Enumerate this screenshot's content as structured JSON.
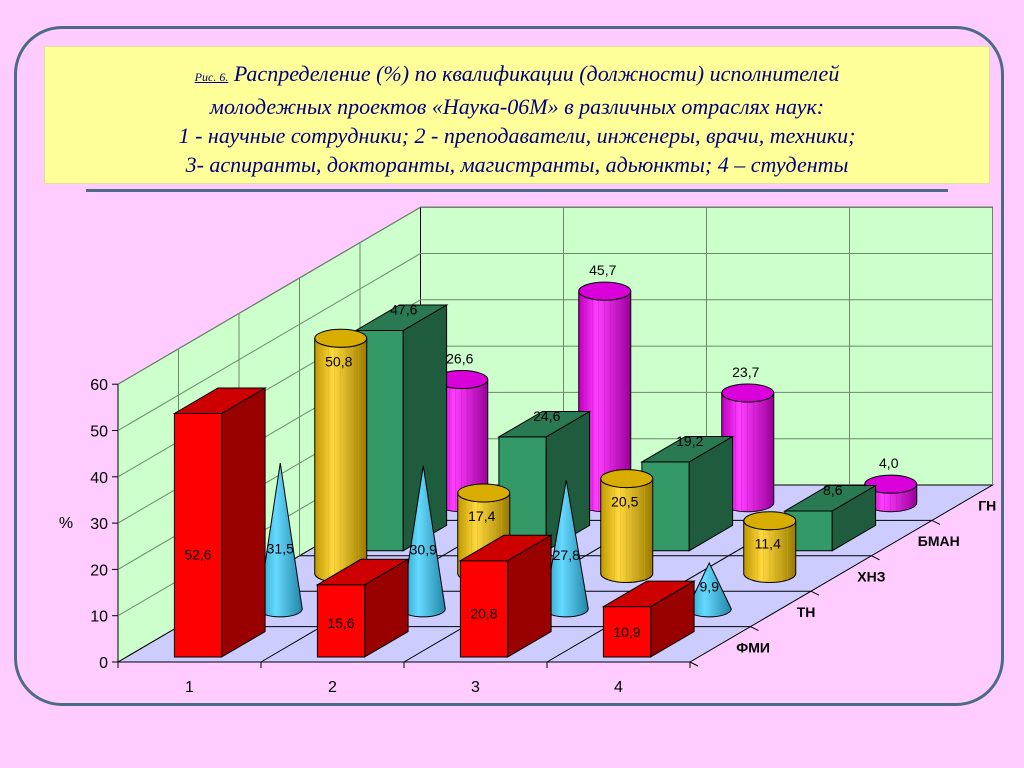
{
  "caption": {
    "fig_label": "Рис. 6.",
    "line1": "Распределение (%)  по квалификации (должности) исполнителей",
    "line2": "молодежных проектов «Наука-06М» в различных отраслях наук:",
    "line3": "1 - научные сотрудники; 2 - преподаватели, инженеры, врачи, техники;",
    "line4": "3- аспиранты, докторанты, магистранты, адьюнкты; 4 – студенты"
  },
  "chart_data": {
    "type": "bar",
    "subtype": "3d-grouped",
    "categories": [
      "1",
      "2",
      "3",
      "4"
    ],
    "ylabel": "%",
    "ylim": [
      0,
      60
    ],
    "yticks": [
      "0",
      "10",
      "20",
      "30",
      "40",
      "50",
      "60"
    ],
    "grid": true,
    "series": [
      {
        "name": "ФМИ",
        "shape": "box",
        "color": "#ff0000",
        "values": [
          52.6,
          15.6,
          20.8,
          10.9
        ],
        "labels": [
          "52,6",
          "15,6",
          "20,8",
          "10,9"
        ]
      },
      {
        "name": "ТН",
        "shape": "cone",
        "color": "#33ccff",
        "values": [
          31.5,
          30.9,
          27.8,
          9.9
        ],
        "labels": [
          "31,5",
          "30,9",
          "27,8",
          "9,9"
        ]
      },
      {
        "name": "ХНЗ",
        "shape": "cylinder",
        "color": "#ffcc00",
        "values": [
          50.8,
          17.4,
          20.5,
          11.4
        ],
        "labels": [
          "50,8",
          "17,4",
          "20,5",
          "11,4"
        ]
      },
      {
        "name": "БМАН",
        "shape": "box",
        "color": "#339966",
        "values": [
          47.6,
          24.6,
          19.2,
          8.6
        ],
        "labels": [
          "47,6",
          "24,6",
          "19,2",
          "8,6"
        ]
      },
      {
        "name": "ГН",
        "shape": "cylinder",
        "color": "#ff00ff",
        "values": [
          26.6,
          45.7,
          23.7,
          4.0
        ],
        "labels": [
          "26,6",
          "45,7",
          "23,7",
          "4,0"
        ]
      }
    ]
  }
}
